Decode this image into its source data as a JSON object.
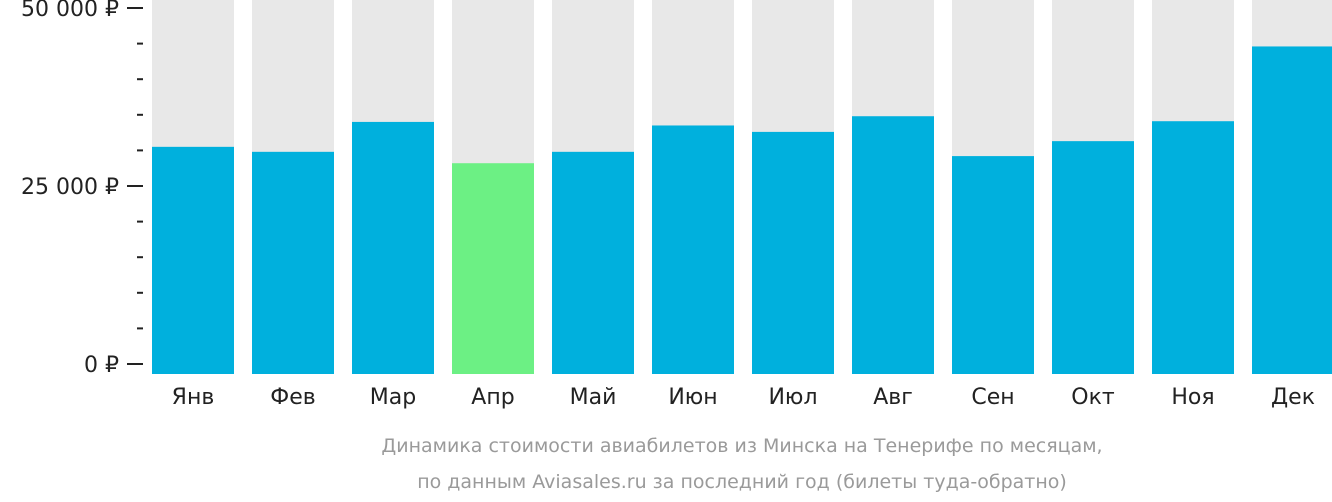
{
  "chart_data": {
    "type": "bar",
    "categories": [
      "Янв",
      "Фев",
      "Мар",
      "Апр",
      "Май",
      "Июн",
      "Июл",
      "Авг",
      "Сен",
      "Окт",
      "Ноя",
      "Дек"
    ],
    "values": [
      30500,
      29800,
      34000,
      28200,
      29800,
      33500,
      32600,
      34800,
      29200,
      31300,
      34100,
      44600
    ],
    "ylim": [
      0,
      50000
    ],
    "yticks": [
      {
        "value": 0,
        "label": "0 ₽"
      },
      {
        "value": 25000,
        "label": "25 000 ₽"
      },
      {
        "value": 50000,
        "label": "50 000 ₽"
      }
    ],
    "minor_tick_step": 5000,
    "highlight_index": 3,
    "colors": {
      "bar": "#00b0dd",
      "highlight": "#6cf084",
      "background_bar": "#e8e8e8",
      "axis": "#222222"
    },
    "caption_lines": [
      "Динамика стоимости авиабилетов из Минска на Тенерифе по месяцам,",
      "по данным Aviasales.ru за последний год (билеты туда-обратно)"
    ]
  }
}
